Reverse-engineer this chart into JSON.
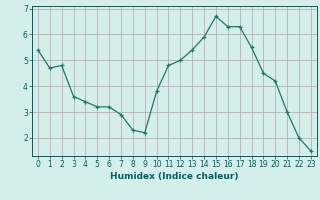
{
  "x": [
    0,
    1,
    2,
    3,
    4,
    5,
    6,
    7,
    8,
    9,
    10,
    11,
    12,
    13,
    14,
    15,
    16,
    17,
    18,
    19,
    20,
    21,
    22,
    23
  ],
  "y": [
    5.4,
    4.7,
    4.8,
    3.6,
    3.4,
    3.2,
    3.2,
    2.9,
    2.3,
    2.2,
    3.8,
    4.8,
    5.0,
    5.4,
    5.9,
    6.7,
    6.3,
    6.3,
    5.5,
    4.5,
    4.2,
    3.0,
    2.0,
    1.5
  ],
  "line_color": "#1a7a6a",
  "marker": "+",
  "marker_size": 3,
  "bg_color": "#d4eeec",
  "grid_color": "#c0a0a0",
  "xlabel": "Humidex (Indice chaleur)",
  "ylim": [
    1.3,
    7.1
  ],
  "xlim": [
    -0.5,
    23.5
  ],
  "yticks": [
    2,
    3,
    4,
    5,
    6,
    7
  ],
  "xticks": [
    0,
    1,
    2,
    3,
    4,
    5,
    6,
    7,
    8,
    9,
    10,
    11,
    12,
    13,
    14,
    15,
    16,
    17,
    18,
    19,
    20,
    21,
    22,
    23
  ],
  "label_fontsize": 6.5,
  "tick_fontsize": 5.5
}
